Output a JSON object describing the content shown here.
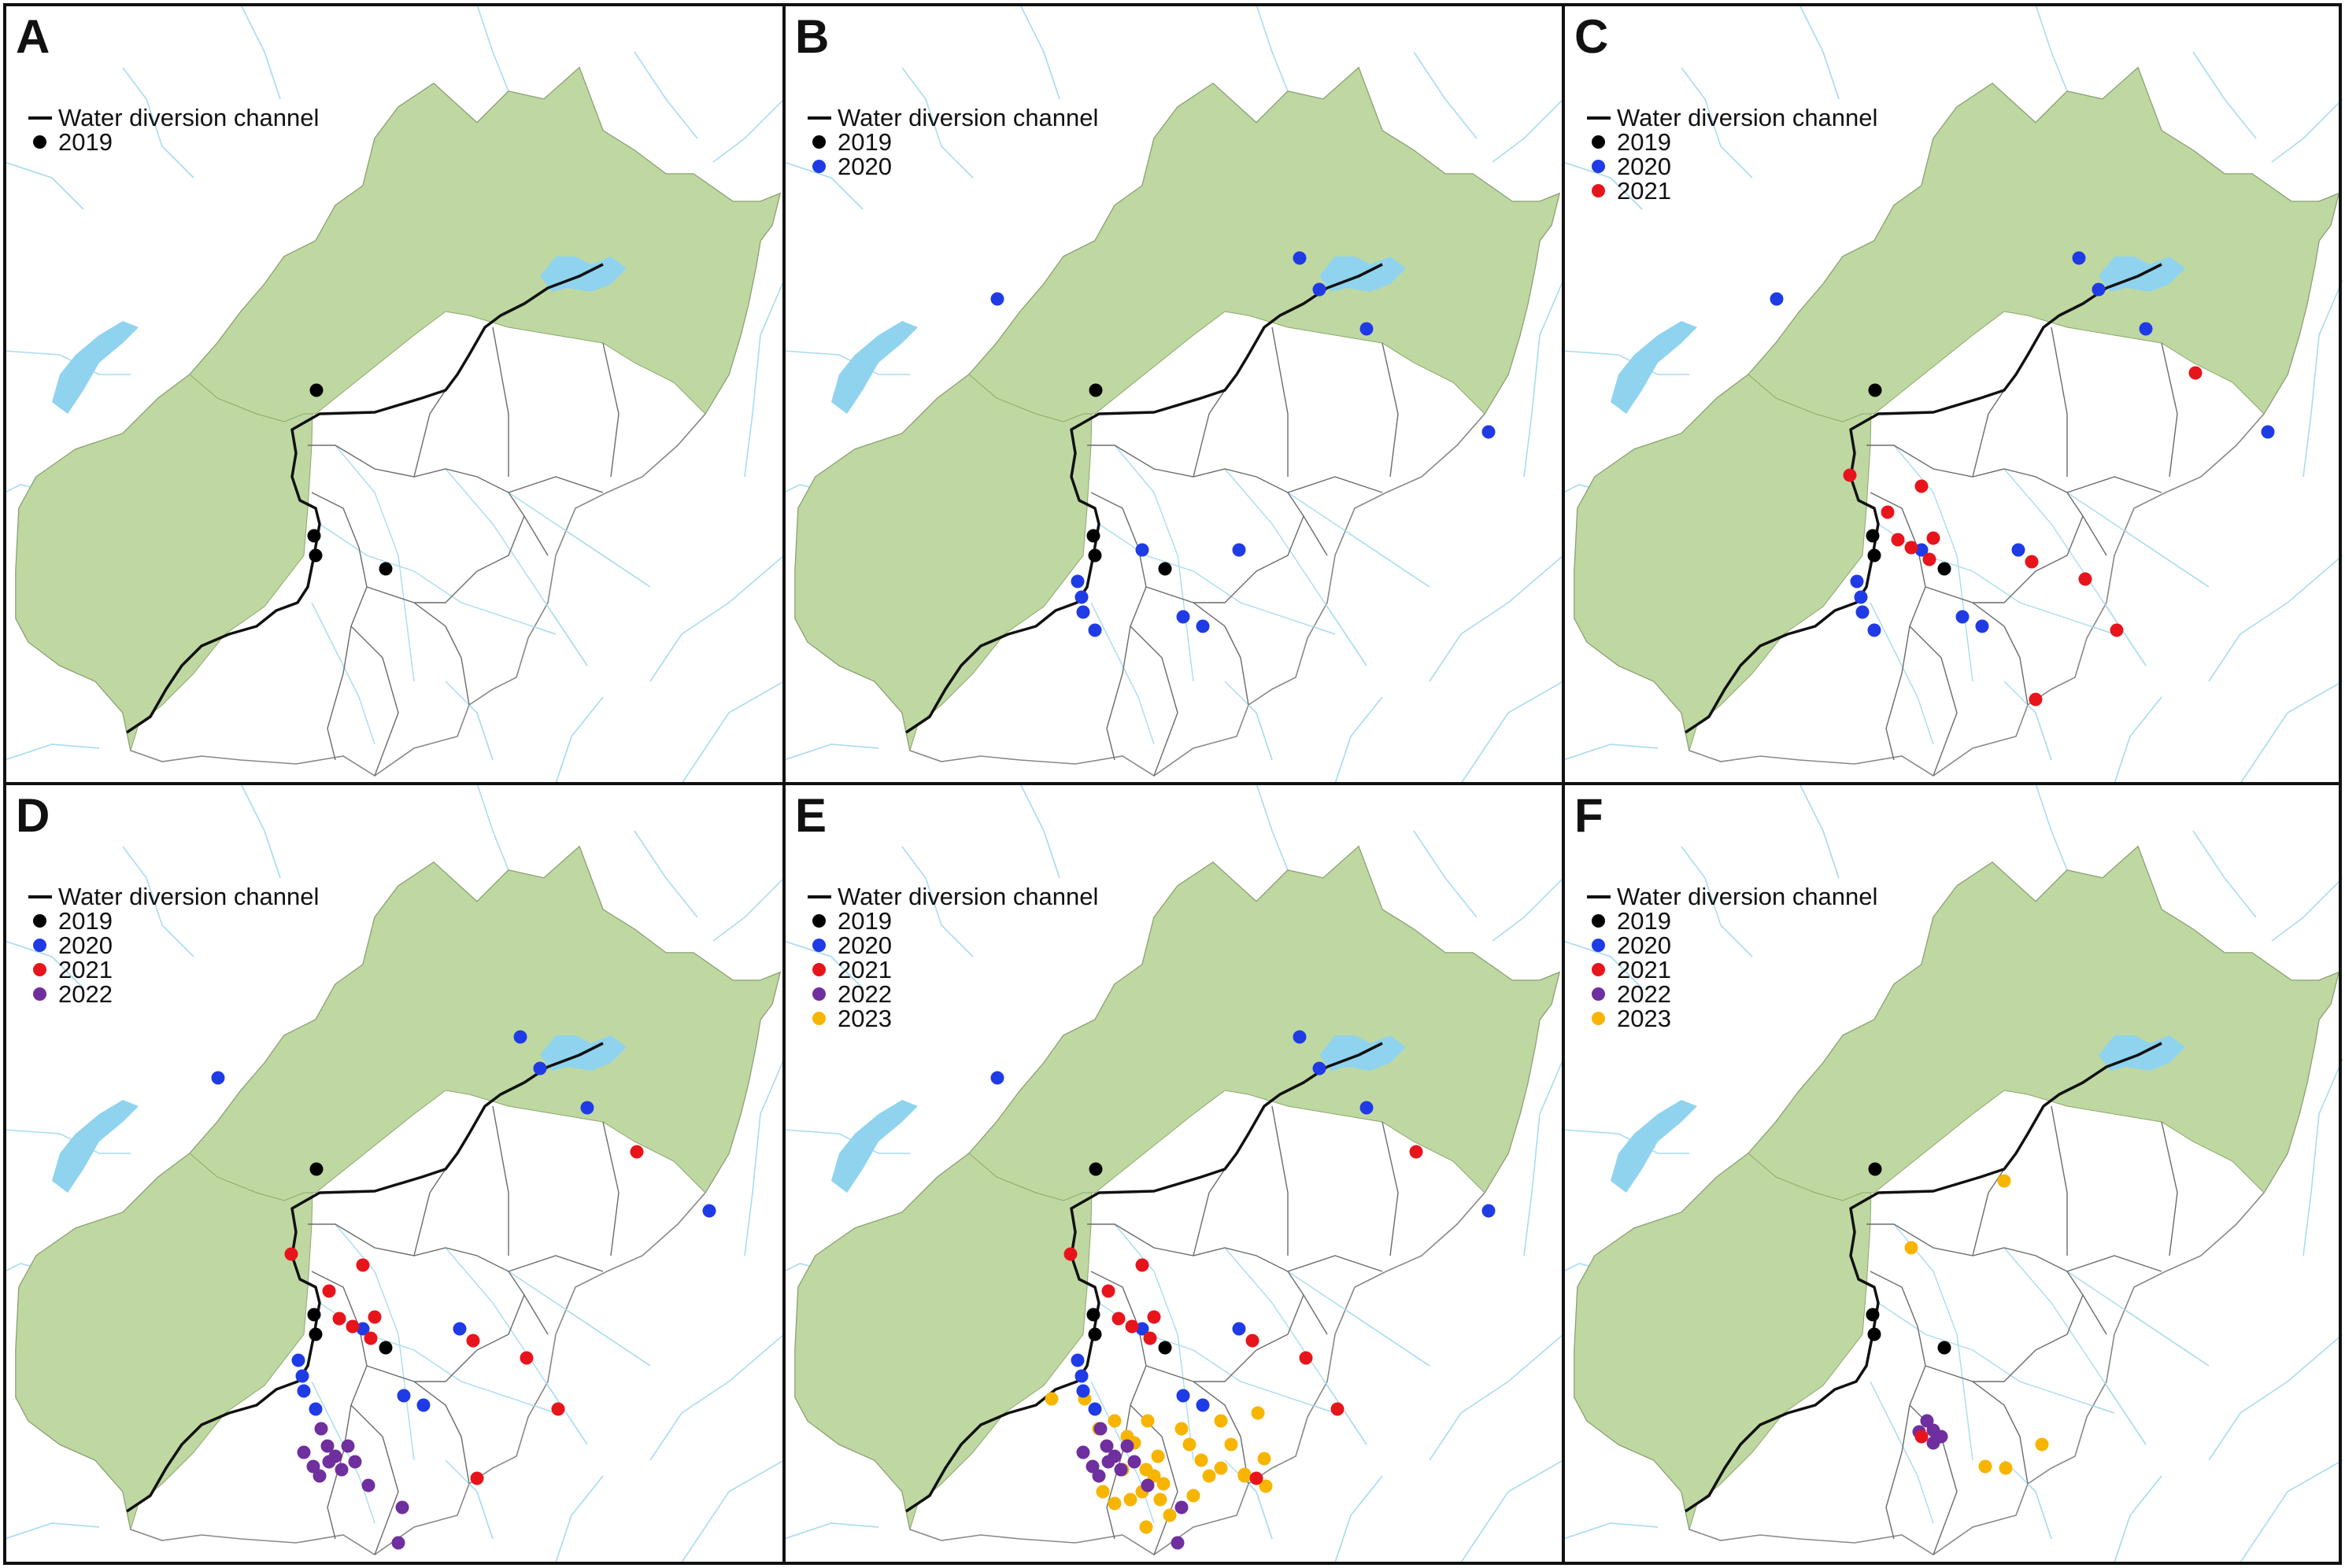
{
  "legend": {
    "channel_label": "Water diversion channel",
    "year_labels": [
      "2019",
      "2020",
      "2021",
      "2022",
      "2023"
    ]
  },
  "colors": {
    "2019": "#000000",
    "2020": "#1f3be6",
    "2021": "#e8141c",
    "2022": "#6f2f9e",
    "2023": "#f7b500",
    "land_green": "#bfd8a2",
    "water": "#8fd3ef",
    "river": "#a9dcf0",
    "boundary": "#6b6b6b",
    "channel": "#111111"
  },
  "panels": [
    {
      "letter": "A",
      "years": [
        "2019"
      ]
    },
    {
      "letter": "B",
      "years": [
        "2019",
        "2020"
      ]
    },
    {
      "letter": "C",
      "years": [
        "2019",
        "2020",
        "2021"
      ]
    },
    {
      "letter": "D",
      "years": [
        "2019",
        "2020",
        "2021",
        "2022"
      ]
    },
    {
      "letter": "E",
      "years": [
        "2019",
        "2020",
        "2021",
        "2022",
        "2023"
      ]
    },
    {
      "letter": "F",
      "years": [
        "2019",
        "2020",
        "2021",
        "2022",
        "2023"
      ]
    }
  ]
}
